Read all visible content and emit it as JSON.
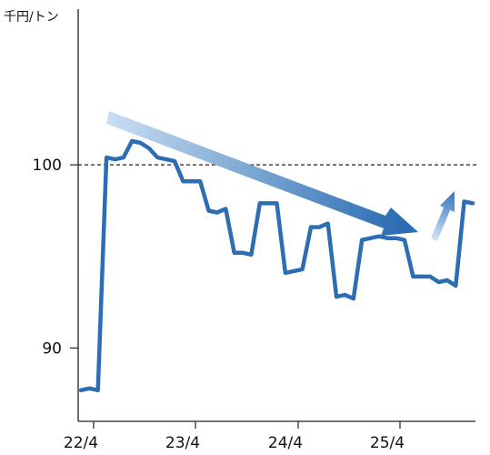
{
  "chart_data": {
    "type": "line",
    "unit_label": "千円/トン",
    "ylim": [
      86,
      108.5
    ],
    "y_ticks": [
      {
        "value": 100,
        "label": "100"
      },
      {
        "value": 90,
        "label": "90"
      }
    ],
    "x_ticks": [
      {
        "label": "22/4"
      },
      {
        "label": "23/4"
      },
      {
        "label": "24/4"
      },
      {
        "label": "25/4"
      }
    ],
    "reference_line": {
      "value": 100,
      "style": "dashed"
    },
    "grid": false,
    "series": [
      {
        "color": "#2c6db3",
        "values": [
          87.7,
          87.8,
          87.7,
          100.4,
          100.3,
          100.4,
          101.3,
          101.2,
          100.9,
          100.4,
          100.3,
          100.2,
          99.1,
          99.1,
          99.1,
          97.5,
          97.4,
          97.6,
          95.2,
          95.2,
          95.1,
          97.9,
          97.9,
          97.9,
          94.1,
          94.2,
          94.3,
          96.6,
          96.6,
          96.8,
          92.8,
          92.9,
          92.7,
          95.9,
          96.0,
          96.1,
          96.0,
          96.0,
          95.9,
          93.9,
          93.9,
          93.9,
          93.6,
          93.7,
          93.4,
          98.0,
          97.9
        ]
      }
    ],
    "annotations": [
      {
        "type": "trend-arrow",
        "direction": "down",
        "color": "#2c6db3"
      },
      {
        "type": "trend-arrow",
        "direction": "up",
        "color": "#2c6db3"
      }
    ]
  }
}
